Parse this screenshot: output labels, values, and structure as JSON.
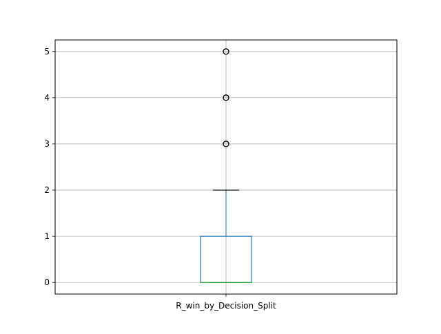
{
  "chart_data": {
    "type": "box",
    "categories": [
      "R_win_by_Decision_Split"
    ],
    "boxes": [
      {
        "name": "R_win_by_Decision_Split",
        "whisker_low": 0,
        "q1": 0,
        "median": 0,
        "q3": 1,
        "whisker_high": 2,
        "outliers": [
          3,
          4,
          5
        ]
      }
    ],
    "title": "",
    "xlabel": "",
    "ylabel": "",
    "ylim": [
      -0.25,
      5.25
    ],
    "yticks": [
      0,
      1,
      2,
      3,
      4,
      5
    ],
    "grid": true,
    "colors": {
      "box": "#1f77b4",
      "median": "#2ca02c",
      "whisker": "#1f77b4",
      "cap": "#000000",
      "outlier": "#000000",
      "grid": "#b0b0b0"
    }
  }
}
